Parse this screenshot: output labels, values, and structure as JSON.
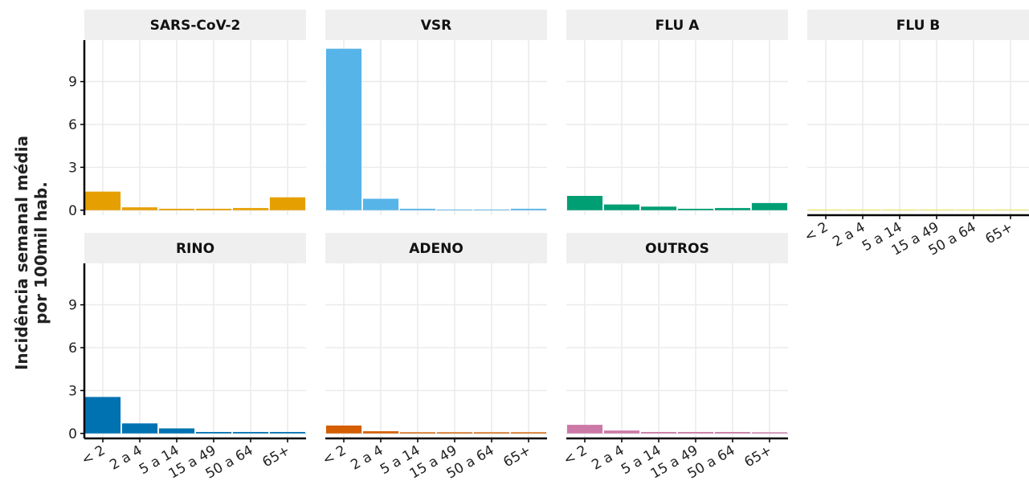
{
  "chart_data": {
    "type": "bar",
    "ylabel": [
      "Incidência  semanal média",
      "por 100mil hab."
    ],
    "categories": [
      "< 2",
      "2 a 4",
      "5 a 14",
      "15 a 49",
      "50 a 64",
      "65+"
    ],
    "ylim": [
      -0.35,
      11.9
    ],
    "yticks": [
      0,
      3,
      6,
      9
    ],
    "grid": true,
    "facets": [
      {
        "title": "SARS-CoV-2",
        "color": "#E69F00",
        "values": [
          1.3,
          0.2,
          0.1,
          0.1,
          0.15,
          0.9
        ]
      },
      {
        "title": "VSR",
        "color": "#56B4E9",
        "values": [
          11.3,
          0.8,
          0.1,
          0.05,
          0.05,
          0.1
        ]
      },
      {
        "title": "FLU A",
        "color": "#009E73",
        "values": [
          1.0,
          0.4,
          0.25,
          0.1,
          0.15,
          0.5
        ]
      },
      {
        "title": "FLU B",
        "color": "#F0E442",
        "values": [
          0.05,
          0.05,
          0.05,
          0.05,
          0.05,
          0.05
        ]
      },
      {
        "title": "RINO",
        "color": "#0072B2",
        "values": [
          2.55,
          0.7,
          0.35,
          0.1,
          0.1,
          0.1
        ]
      },
      {
        "title": "ADENO",
        "color": "#D55E00",
        "values": [
          0.55,
          0.15,
          0.08,
          0.08,
          0.08,
          0.08
        ]
      },
      {
        "title": "OUTROS",
        "color": "#CC79A7",
        "values": [
          0.6,
          0.2,
          0.1,
          0.1,
          0.1,
          0.08
        ]
      }
    ]
  }
}
